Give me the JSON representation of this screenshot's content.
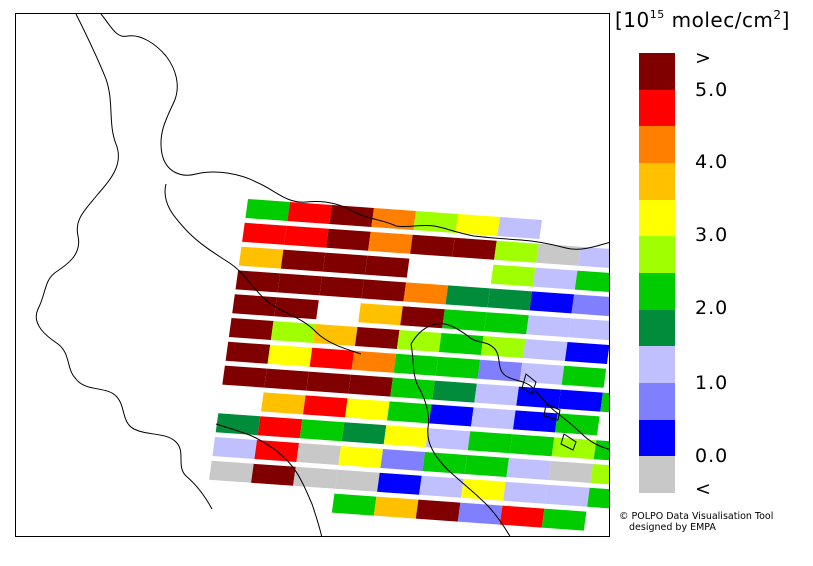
{
  "legend": {
    "title_prefix": "[10",
    "title_exp": "15",
    "title_unit": " molec/cm",
    "title_unit_exp": "2",
    "title_suffix": "]",
    "labels": {
      "top": ">",
      "l50": "5.0",
      "l40": "4.0",
      "l30": "3.0",
      "l20": "2.0",
      "l10": "1.0",
      "l00": "0.0",
      "bottom": "<"
    },
    "colors_top_to_bottom": [
      "#800000",
      "#ff0000",
      "#ff8000",
      "#ffc000",
      "#ffff00",
      "#a0ff00",
      "#00cc00",
      "#008c3a",
      "#c0c0ff",
      "#8080ff",
      "#0000ff",
      "#c8c8c8"
    ]
  },
  "credit": {
    "line1": "© POLPO Data Visualisation Tool",
    "line2": "designed by EMPA"
  },
  "colors": {
    "gt5": "#800000",
    "c5": "#ff0000",
    "c4a": "#ff8000",
    "c4": "#ffc000",
    "c3a": "#ffff00",
    "c3": "#a0ff00",
    "c2a": "#00cc00",
    "c2": "#008c3a",
    "c1a": "#c0c0ff",
    "c1": "#8080ff",
    "c0": "#0000ff",
    "lt0": "#c8c8c8"
  },
  "swath_rows": [
    [
      "c2a",
      "c5",
      "gt5",
      "c4a",
      "c3",
      "c3a",
      "c1a",
      null,
      null,
      null
    ],
    [
      "c5",
      "c5",
      "gt5",
      "c4a",
      "gt5",
      "gt5",
      "c3",
      "lt0",
      "c1a",
      null
    ],
    [
      "c4",
      "gt5",
      "gt5",
      "gt5",
      null,
      null,
      "c3",
      "c1a",
      "c2a",
      null
    ],
    [
      "gt5",
      "gt5",
      "gt5",
      "gt5",
      "c4a",
      "c2",
      "c2",
      "c0",
      "c1",
      null
    ],
    [
      "gt5",
      "gt5",
      null,
      "c4",
      "gt5",
      "c2a",
      "c2a",
      "c1a",
      "c1a",
      null
    ],
    [
      "gt5",
      "c3",
      "c4",
      "gt5",
      "c3",
      "c2a",
      "c3",
      "c1a",
      "c0",
      null
    ],
    [
      "gt5",
      "c3a",
      "c5",
      "c4a",
      "c2a",
      "c2a",
      "c1",
      "c1a",
      "c2a",
      null
    ],
    [
      "gt5",
      "gt5",
      "gt5",
      "gt5",
      "c2a",
      "c2",
      "c1a",
      "c0",
      "c0",
      "c2a"
    ],
    [
      null,
      "c4",
      "c5",
      "c3a",
      "c2a",
      "c0",
      "c1a",
      "c0",
      "c2a",
      null
    ],
    [
      "c2",
      "c5",
      "c2a",
      "c2",
      "c3a",
      "c1a",
      "c2a",
      "c2a",
      "c3",
      "c2a"
    ],
    [
      "c1a",
      "c5",
      "lt0",
      "c3a",
      "c1",
      "c2a",
      "c2a",
      "c1a",
      "lt0",
      "c3"
    ],
    [
      "lt0",
      "gt5",
      "lt0",
      "lt0",
      "c0",
      "c1a",
      "c3a",
      "c1a",
      "c1a",
      "c2a"
    ],
    [
      null,
      null,
      null,
      "c2a",
      "c4",
      "gt5",
      "c1",
      "c5",
      "c2a",
      null
    ]
  ]
}
